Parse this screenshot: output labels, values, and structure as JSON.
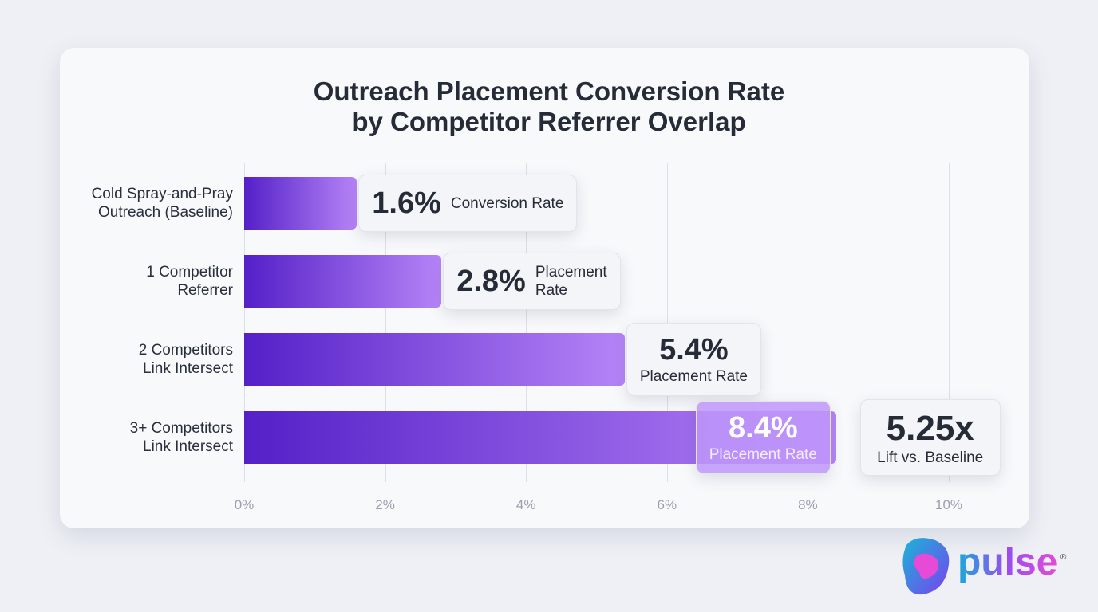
{
  "chart_data": {
    "type": "bar",
    "orientation": "horizontal",
    "title": "Outreach Placement Conversion Rate\nby Competitor Referrer Overlap",
    "categories": [
      "Cold Spray-and-Pray\nOutreach (Baseline)",
      "1 Competitor\nReferrer",
      "2 Competitors\nLink Intersect",
      "3+ Competitors\nLink Intersect"
    ],
    "values": [
      1.6,
      2.8,
      5.4,
      8.4
    ],
    "value_labels": [
      "1.6%",
      "2.8%",
      "5.4%",
      "8.4%"
    ],
    "label_notes": [
      "Conversion Rate",
      "Placement\nRate",
      "Placement Rate",
      "Placement Rate"
    ],
    "color": [
      "#5420c8",
      "#b684f7"
    ],
    "xlim": [
      0,
      10
    ],
    "xticks": [
      {
        "value": 0,
        "label": "0%"
      },
      {
        "value": 2,
        "label": "2%"
      },
      {
        "value": 4,
        "label": "4%"
      },
      {
        "value": 6,
        "label": "6%"
      },
      {
        "value": 8,
        "label": "8%"
      },
      {
        "value": 10,
        "label": "10%"
      }
    ],
    "grid": true,
    "annotation": {
      "value": "5.25x",
      "text": "Lift vs. Baseline"
    }
  },
  "logo": {
    "text": "pulse",
    "mark": "®"
  }
}
